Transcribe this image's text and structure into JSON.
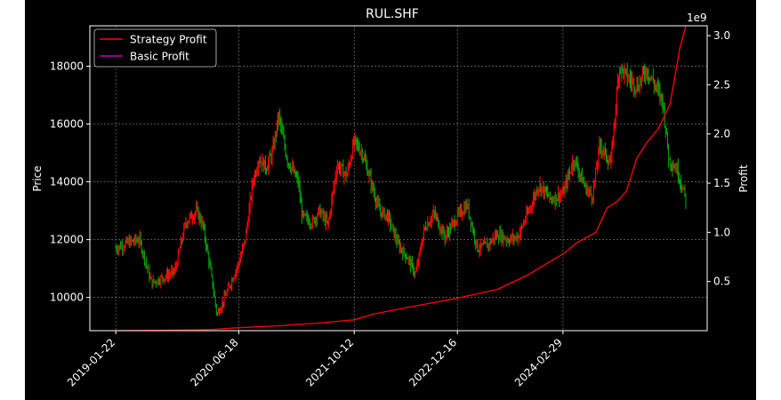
{
  "chart_data": {
    "type": "line",
    "title": "RUL.SHF",
    "xlabel": "",
    "ylabel_left": "Price",
    "ylabel_right": "Profit",
    "right_axis_offset_text": "1e9",
    "x_ticks": [
      "2019-01-22",
      "2020-06-18",
      "2021-10-12",
      "2022-12-16",
      "2024-02-29"
    ],
    "y_left_ticks": [
      10000,
      12000,
      14000,
      16000,
      18000
    ],
    "y_left_tick_labels": [
      "10000",
      "12000",
      "14000",
      "16000",
      "18000"
    ],
    "y_right_ticks": [
      0.5,
      1.0,
      1.5,
      2.0,
      2.5,
      3.0
    ],
    "y_right_tick_labels": [
      "0.5",
      "1.0",
      "1.5",
      "2.0",
      "2.5",
      "3.0"
    ],
    "x_range": [
      "2018-10-06",
      "2025-10-22"
    ],
    "y_left_range": [
      8850,
      19400
    ],
    "y_right_range": [
      0.0,
      3.1
    ],
    "grid": true,
    "legend_placement": "top-left",
    "legend": [
      {
        "name": "Strategy Profit",
        "color": "#ff0000"
      },
      {
        "name": "Basic Profit",
        "color": "#bf00bf"
      }
    ],
    "candle_colors": {
      "up": "#ff0000",
      "down": "#00a000"
    },
    "price_series": {
      "dates": [
        "2019-01-22",
        "2019-03-15",
        "2019-05-01",
        "2019-06-20",
        "2019-08-10",
        "2019-09-25",
        "2019-11-10",
        "2019-12-25",
        "2020-01-20",
        "2020-02-20",
        "2020-03-19",
        "2020-04-15",
        "2020-05-15",
        "2020-06-18",
        "2020-07-15",
        "2020-08-15",
        "2020-09-10",
        "2020-10-10",
        "2020-11-05",
        "2020-12-01",
        "2021-01-05",
        "2021-02-20",
        "2021-03-10",
        "2021-04-20",
        "2021-05-20",
        "2021-06-25",
        "2021-08-01",
        "2021-09-10",
        "2021-10-12",
        "2021-11-15",
        "2021-12-20",
        "2022-01-25",
        "2022-03-01",
        "2022-04-15",
        "2022-05-20",
        "2022-06-25",
        "2022-08-01",
        "2022-09-10",
        "2022-10-25",
        "2022-12-16",
        "2023-01-25",
        "2023-03-10",
        "2023-04-20",
        "2023-06-01",
        "2023-07-15",
        "2023-08-25",
        "2023-10-10",
        "2023-11-20",
        "2024-01-10",
        "2024-02-29",
        "2024-04-15",
        "2024-06-01",
        "2024-07-01",
        "2024-08-01",
        "2024-09-15",
        "2024-10-20",
        "2024-11-25",
        "2025-01-05",
        "2025-02-10",
        "2025-03-15",
        "2025-04-20",
        "2025-05-15",
        "2025-06-20",
        "2025-07-25"
      ],
      "close": [
        11700,
        11900,
        12000,
        10500,
        10700,
        10900,
        12600,
        13000,
        12500,
        11000,
        9400,
        9900,
        10500,
        11200,
        12000,
        14000,
        14800,
        14500,
        15000,
        16300,
        14800,
        14000,
        12800,
        12600,
        13000,
        12500,
        14600,
        14200,
        15400,
        15000,
        14000,
        13000,
        12800,
        11800,
        11400,
        10800,
        12400,
        12900,
        12100,
        12800,
        13200,
        11700,
        11800,
        12200,
        12000,
        12100,
        13000,
        13900,
        13400,
        13600,
        14800,
        13800,
        13500,
        15300,
        14600,
        18000,
        17600,
        17300,
        17900,
        17400,
        16800,
        14800,
        14400,
        13400
      ]
    },
    "series": [
      {
        "name": "Strategy Profit",
        "x": [
          "2019-01-22",
          "2019-06-01",
          "2019-12-01",
          "2020-03-01",
          "2020-06-18",
          "2020-12-01",
          "2021-06-01",
          "2021-10-12",
          "2022-01-01",
          "2022-06-01",
          "2022-12-16",
          "2023-06-01",
          "2023-10-01",
          "2024-02-29",
          "2024-05-01",
          "2024-07-15",
          "2024-09-01",
          "2024-10-15",
          "2024-11-20",
          "2025-01-01",
          "2025-02-15",
          "2025-04-01",
          "2025-05-20",
          "2025-07-01",
          "2025-07-25"
        ],
        "values": [
          0.0,
          0.003,
          0.007,
          0.013,
          0.03,
          0.05,
          0.08,
          0.11,
          0.17,
          0.24,
          0.33,
          0.42,
          0.56,
          0.78,
          0.9,
          1.0,
          1.25,
          1.32,
          1.42,
          1.75,
          1.92,
          2.05,
          2.3,
          2.88,
          3.1
        ]
      },
      {
        "name": "Basic Profit",
        "x": [],
        "values": []
      }
    ]
  }
}
